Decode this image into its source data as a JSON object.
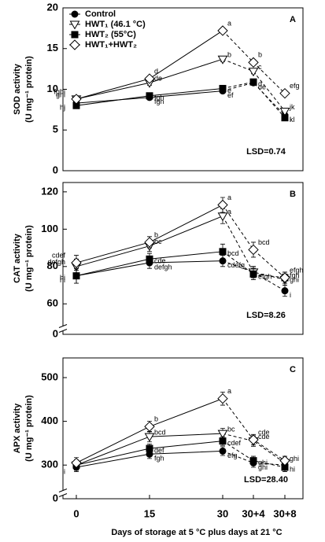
{
  "chart_data": [
    {
      "type": "line",
      "ylabel": [
        "SOD activity",
        "(U mg⁻¹ protein)"
      ],
      "panel": "A",
      "note": "LSD=0.74",
      "ylim": [
        0,
        20
      ],
      "yticks": [
        0,
        5,
        10,
        15,
        20
      ],
      "series": [
        {
          "name": "Control",
          "marker": "circle",
          "color": "#000000",
          "values": [
            8.3,
            9.0,
            9.8,
            10.8,
            6.8
          ],
          "errors": [
            0.3,
            0.3,
            0.3,
            0.3,
            0.3
          ],
          "point_labels": [
            "ij",
            "fgh",
            "ef",
            "de",
            "l"
          ]
        },
        {
          "name": "HWT₁ (46.1 °C)",
          "marker": "triangle",
          "color": "#000000",
          "values": [
            8.8,
            10.8,
            13.7,
            12.2,
            7.3
          ],
          "errors": [
            0.3,
            0.3,
            0.3,
            0.3,
            0.3
          ],
          "point_labels": [
            "ghi",
            "de",
            "b",
            "c",
            "jk"
          ]
        },
        {
          "name": "HWT₂ (55°C)",
          "marker": "square",
          "color": "#000000",
          "values": [
            8.0,
            9.2,
            10.1,
            10.9,
            6.5
          ],
          "errors": [
            0.3,
            0.3,
            0.3,
            0.3,
            0.3
          ],
          "point_labels": [
            "hi",
            "fgh",
            "e",
            "d",
            "kl"
          ]
        },
        {
          "name": "HWT₁+HWT₂",
          "marker": "diamond",
          "color": "#000000",
          "values": [
            8.8,
            11.3,
            17.2,
            13.3,
            9.5
          ],
          "errors": [
            0.3,
            0.3,
            0.3,
            0.3,
            0.3
          ],
          "point_labels": [
            "fghi",
            "d",
            "a",
            "b",
            "efg"
          ]
        }
      ]
    },
    {
      "type": "line",
      "ylabel": [
        "CAT activity",
        "(U mg⁻¹ protein)"
      ],
      "panel": "B",
      "note": "LSD=8.26",
      "ylim": [
        50,
        125
      ],
      "yticks": [
        60,
        80,
        100,
        120
      ],
      "ybreak_tick": 0,
      "series": [
        {
          "marker": "circle",
          "color": "#000000",
          "values": [
            75,
            82,
            83,
            77,
            67
          ],
          "errors": [
            4,
            3,
            3,
            3,
            3
          ],
          "point_labels": [
            "hi",
            "defgh",
            "cdefg",
            "efgh",
            "i"
          ]
        },
        {
          "marker": "triangle",
          "color": "#000000",
          "values": [
            80,
            91,
            107,
            77,
            73
          ],
          "errors": [
            4,
            3,
            4,
            3,
            3
          ],
          "point_labels": [
            "defgh",
            "bc",
            "a",
            null,
            "fgh"
          ]
        },
        {
          "marker": "square",
          "color": "#000000",
          "values": [
            75,
            84,
            88,
            76,
            74
          ],
          "errors": [
            4,
            3,
            4,
            3,
            3
          ],
          "point_labels": [
            "hi",
            "cde",
            "bcd",
            null,
            "ghi"
          ]
        },
        {
          "marker": "diamond",
          "color": "#000000",
          "values": [
            82,
            93,
            113,
            89,
            74
          ],
          "errors": [
            4,
            3,
            4,
            4,
            3
          ],
          "point_labels": [
            "cdef",
            "b",
            "a",
            "bcd",
            "efgh"
          ]
        }
      ]
    },
    {
      "type": "line",
      "ylabel": [
        "APX activity",
        "(U mg⁻¹ protein)"
      ],
      "panel": "C",
      "note": "LSD=28.40",
      "ylim": [
        250,
        545
      ],
      "yticks": [
        300,
        400,
        500
      ],
      "ybreak_tick": 0,
      "xlabel": "Days of storage at 5 °C plus days at 21 °C",
      "categories": [
        "0",
        "15",
        "30",
        "30+4",
        "30+8"
      ],
      "series": [
        {
          "marker": "circle",
          "color": "#000000",
          "values": [
            295,
            325,
            332,
            305,
            300
          ],
          "errors": [
            10,
            10,
            10,
            10,
            10
          ],
          "point_labels": [
            "i",
            "fgh",
            "efg",
            "ghi",
            "hi"
          ]
        },
        {
          "marker": "triangle",
          "color": "#000000",
          "values": [
            300,
            365,
            372,
            355,
            305
          ],
          "errors": [
            12,
            12,
            12,
            12,
            10
          ],
          "point_labels": [
            null,
            "bcd",
            "bc",
            "cde",
            "ghi"
          ]
        },
        {
          "marker": "square",
          "color": "#000000",
          "values": [
            300,
            338,
            355,
            310,
            295
          ],
          "errors": [
            10,
            10,
            10,
            10,
            10
          ],
          "point_labels": [
            null,
            "def",
            "cdef",
            "ghi",
            null
          ]
        },
        {
          "marker": "diamond",
          "color": "#000000",
          "values": [
            305,
            388,
            452,
            358,
            310
          ],
          "errors": [
            12,
            12,
            15,
            12,
            10
          ],
          "point_labels": [
            null,
            "b",
            "a",
            "cde",
            null
          ]
        }
      ]
    }
  ]
}
